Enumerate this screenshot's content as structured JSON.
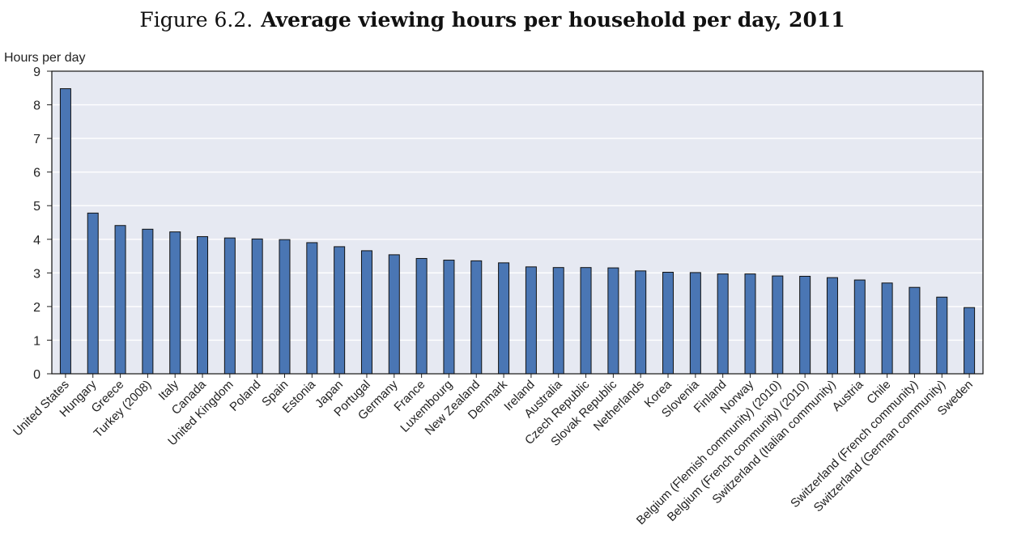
{
  "figure": {
    "number": "Figure 6.2.",
    "title": "Average viewing hours per household per day, 2011"
  },
  "chart_data": {
    "type": "bar",
    "title": "Average viewing hours per household per day, 2011",
    "ylabel": "Hours per day",
    "xlabel": "",
    "ylim": [
      0,
      9
    ],
    "yticks": [
      0,
      1,
      2,
      3,
      4,
      5,
      6,
      7,
      8,
      9
    ],
    "grid": true,
    "bar_color": "#4a76b4",
    "plot_background": "#e6e9f2",
    "categories": [
      "United States",
      "Hungary",
      "Greece",
      "Turkey (2008)",
      "Italy",
      "Canada",
      "United Kingdom",
      "Poland",
      "Spain",
      "Estonia",
      "Japan",
      "Portugal",
      "Germany",
      "France",
      "Luxembourg",
      "New Zealand",
      "Denmark",
      "Ireland",
      "Australia",
      "Czech Republic",
      "Slovak Republic",
      "Netherlands",
      "Korea",
      "Slovenia",
      "Finland",
      "Norway",
      "Belgium (Flemish community) (2010)",
      "Belgium (French community) (2010)",
      "Switzerland (Italian community)",
      "Austria",
      "Chile",
      "Switzerland (French community)",
      "Switzerland (German community)",
      "Sweden"
    ],
    "values": [
      8.48,
      4.78,
      4.41,
      4.3,
      4.22,
      4.08,
      4.04,
      4.01,
      3.99,
      3.9,
      3.78,
      3.66,
      3.54,
      3.43,
      3.38,
      3.36,
      3.3,
      3.18,
      3.16,
      3.16,
      3.15,
      3.06,
      3.02,
      3.01,
      2.97,
      2.97,
      2.91,
      2.9,
      2.86,
      2.79,
      2.7,
      2.57,
      2.28,
      1.97
    ]
  }
}
